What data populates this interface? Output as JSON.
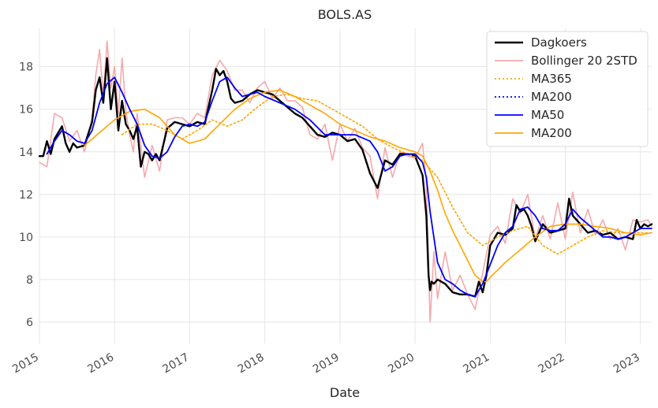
{
  "chart_data": {
    "type": "line",
    "title": "BOLS.AS",
    "xlabel": "Date",
    "ylabel": "",
    "xlim": [
      2015.0,
      2023.15
    ],
    "ylim": [
      5.0,
      19.8
    ],
    "x_ticks": [
      "2015",
      "2016",
      "2017",
      "2018",
      "2019",
      "2020",
      "2021",
      "2022",
      "2023"
    ],
    "y_ticks": [
      6,
      8,
      10,
      12,
      14,
      16,
      18
    ],
    "grid": true,
    "legend_position": "top-right",
    "legend": [
      {
        "name": "Dagkoers",
        "color": "#000000",
        "style": "solid"
      },
      {
        "name": "Bollinger 20 2STD",
        "color": "#f4a9ad",
        "style": "solid"
      },
      {
        "name": "MA365",
        "color": "#ffa500",
        "style": "dotted"
      },
      {
        "name": "MA200",
        "color": "#0000ff",
        "style": "dotted"
      },
      {
        "name": "MA50",
        "color": "#0000ff",
        "style": "solid"
      },
      {
        "name": "MA200",
        "color": "#ffa500",
        "style": "solid"
      }
    ],
    "series": [
      {
        "name": "Dagkoers",
        "x": [
          2015.0,
          2015.05,
          2015.1,
          2015.15,
          2015.2,
          2015.3,
          2015.35,
          2015.4,
          2015.45,
          2015.5,
          2015.6,
          2015.7,
          2015.75,
          2015.8,
          2015.85,
          2015.9,
          2015.95,
          2016.0,
          2016.05,
          2016.1,
          2016.15,
          2016.2,
          2016.25,
          2016.3,
          2016.35,
          2016.4,
          2016.45,
          2016.5,
          2016.55,
          2016.6,
          2016.7,
          2016.8,
          2016.9,
          2017.0,
          2017.1,
          2017.2,
          2017.3,
          2017.35,
          2017.4,
          2017.45,
          2017.5,
          2017.55,
          2017.6,
          2017.7,
          2017.8,
          2017.9,
          2018.0,
          2018.1,
          2018.2,
          2018.3,
          2018.4,
          2018.5,
          2018.6,
          2018.7,
          2018.8,
          2018.9,
          2019.0,
          2019.1,
          2019.2,
          2019.3,
          2019.4,
          2019.5,
          2019.6,
          2019.7,
          2019.8,
          2019.9,
          2020.0,
          2020.1,
          2020.15,
          2020.18,
          2020.2,
          2020.22,
          2020.25,
          2020.3,
          2020.4,
          2020.5,
          2020.6,
          2020.7,
          2020.8,
          2020.85,
          2020.9,
          2020.95,
          2021.0,
          2021.1,
          2021.2,
          2021.3,
          2021.35,
          2021.4,
          2021.45,
          2021.5,
          2021.55,
          2021.6,
          2021.7,
          2021.8,
          2021.9,
          2022.0,
          2022.05,
          2022.1,
          2022.15,
          2022.2,
          2022.3,
          2022.4,
          2022.5,
          2022.6,
          2022.7,
          2022.8,
          2022.9,
          2022.95,
          2023.0,
          2023.05,
          2023.1,
          2023.15
        ],
        "values": [
          13.8,
          13.8,
          14.5,
          13.9,
          14.6,
          15.2,
          14.4,
          14.0,
          14.4,
          14.2,
          14.3,
          15.4,
          16.9,
          17.5,
          16.3,
          18.4,
          16.0,
          17.3,
          15.0,
          16.4,
          15.3,
          15.0,
          14.6,
          15.2,
          13.3,
          14.0,
          13.9,
          13.6,
          13.9,
          13.6,
          15.1,
          15.4,
          15.3,
          15.2,
          15.4,
          15.3,
          16.9,
          17.9,
          17.6,
          17.8,
          17.3,
          16.5,
          16.3,
          16.4,
          16.7,
          16.9,
          16.8,
          16.7,
          16.4,
          16.1,
          15.8,
          15.6,
          15.2,
          14.8,
          14.7,
          14.9,
          14.8,
          14.5,
          14.6,
          14.1,
          13.0,
          12.3,
          13.6,
          13.4,
          13.9,
          13.9,
          13.8,
          12.9,
          11.0,
          8.2,
          7.5,
          7.9,
          7.8,
          8.0,
          7.8,
          7.4,
          7.3,
          7.3,
          7.2,
          7.9,
          7.4,
          8.2,
          9.6,
          10.2,
          10.1,
          10.4,
          11.5,
          11.2,
          11.3,
          11.0,
          10.5,
          9.8,
          10.6,
          10.2,
          10.3,
          10.4,
          11.8,
          11.0,
          10.8,
          10.6,
          10.2,
          10.3,
          10.1,
          10.2,
          9.9,
          10.0,
          9.9,
          10.8,
          10.4,
          10.6,
          10.5,
          10.6
        ]
      },
      {
        "name": "Bollinger 20 2STD",
        "x": [
          2015.0,
          2015.1,
          2015.2,
          2015.3,
          2015.4,
          2015.5,
          2015.6,
          2015.7,
          2015.75,
          2015.8,
          2015.85,
          2015.9,
          2015.95,
          2016.0,
          2016.05,
          2016.1,
          2016.15,
          2016.2,
          2016.25,
          2016.3,
          2016.4,
          2016.5,
          2016.6,
          2016.7,
          2016.8,
          2016.9,
          2017.0,
          2017.1,
          2017.2,
          2017.3,
          2017.4,
          2017.5,
          2017.6,
          2017.7,
          2017.8,
          2017.9,
          2018.0,
          2018.1,
          2018.2,
          2018.3,
          2018.4,
          2018.5,
          2018.6,
          2018.7,
          2018.8,
          2018.9,
          2019.0,
          2019.1,
          2019.2,
          2019.3,
          2019.4,
          2019.5,
          2019.6,
          2019.7,
          2019.8,
          2019.9,
          2020.0,
          2020.1,
          2020.15,
          2020.2,
          2020.25,
          2020.3,
          2020.4,
          2020.5,
          2020.6,
          2020.7,
          2020.8,
          2020.9,
          2021.0,
          2021.1,
          2021.2,
          2021.3,
          2021.4,
          2021.5,
          2021.6,
          2021.7,
          2021.8,
          2021.9,
          2022.0,
          2022.1,
          2022.2,
          2022.3,
          2022.4,
          2022.5,
          2022.6,
          2022.7,
          2022.8,
          2022.9,
          2023.0,
          2023.1,
          2023.15
        ],
        "values": [
          13.5,
          13.3,
          15.8,
          15.6,
          14.5,
          15.0,
          14.0,
          15.6,
          17.6,
          18.8,
          16.6,
          19.2,
          17.0,
          18.0,
          15.8,
          18.4,
          15.9,
          14.8,
          14.0,
          15.8,
          12.8,
          14.3,
          13.1,
          15.5,
          15.6,
          15.6,
          15.3,
          15.8,
          15.6,
          17.6,
          18.3,
          17.8,
          16.9,
          16.9,
          16.3,
          17.0,
          17.3,
          16.5,
          17.0,
          16.4,
          16.4,
          16.1,
          14.8,
          14.6,
          15.3,
          13.6,
          15.3,
          14.5,
          15.1,
          14.2,
          13.8,
          11.8,
          14.2,
          12.8,
          14.0,
          13.8,
          13.7,
          14.4,
          12.5,
          6.0,
          9.3,
          7.1,
          9.3,
          7.5,
          8.2,
          7.3,
          6.6,
          8.3,
          10.1,
          10.5,
          9.7,
          11.8,
          11.1,
          12.0,
          9.9,
          11.0,
          9.9,
          11.6,
          9.9,
          12.1,
          10.2,
          11.3,
          10.1,
          10.8,
          9.9,
          10.4,
          9.4,
          10.8,
          10.7,
          10.8,
          10.5
        ]
      },
      {
        "name": "MA365",
        "x": [
          2016.1,
          2016.3,
          2016.5,
          2016.7,
          2016.9,
          2017.1,
          2017.3,
          2017.5,
          2017.7,
          2017.9,
          2018.1,
          2018.3,
          2018.5,
          2018.7,
          2018.9,
          2019.1,
          2019.3,
          2019.5,
          2019.7,
          2019.9,
          2020.1,
          2020.3,
          2020.5,
          2020.7,
          2020.9,
          2021.1,
          2021.3,
          2021.5,
          2021.7,
          2021.9,
          2022.1,
          2022.3,
          2022.5,
          2022.7,
          2022.9,
          2023.15
        ],
        "values": [
          14.8,
          15.3,
          15.3,
          15.0,
          14.6,
          15.0,
          15.5,
          15.2,
          15.5,
          16.1,
          16.6,
          16.7,
          16.5,
          16.4,
          16.0,
          15.6,
          15.2,
          14.6,
          14.2,
          13.9,
          13.6,
          12.8,
          11.4,
          10.2,
          9.6,
          10.0,
          10.3,
          10.5,
          9.6,
          9.2,
          9.6,
          10.0,
          10.3,
          10.2,
          10.2,
          10.2
        ]
      },
      {
        "name": "MA200",
        "x": [],
        "values": []
      },
      {
        "name": "MA50",
        "x": [
          2015.1,
          2015.2,
          2015.3,
          2015.4,
          2015.5,
          2015.6,
          2015.7,
          2015.8,
          2015.9,
          2016.0,
          2016.1,
          2016.2,
          2016.3,
          2016.4,
          2016.5,
          2016.6,
          2016.7,
          2016.8,
          2016.9,
          2017.0,
          2017.1,
          2017.2,
          2017.3,
          2017.4,
          2017.5,
          2017.6,
          2017.7,
          2017.8,
          2017.9,
          2018.0,
          2018.2,
          2018.4,
          2018.6,
          2018.8,
          2019.0,
          2019.2,
          2019.4,
          2019.5,
          2019.6,
          2019.7,
          2019.8,
          2019.9,
          2020.0,
          2020.1,
          2020.15,
          2020.2,
          2020.3,
          2020.4,
          2020.5,
          2020.6,
          2020.7,
          2020.8,
          2020.9,
          2021.0,
          2021.1,
          2021.2,
          2021.3,
          2021.4,
          2021.5,
          2021.6,
          2021.7,
          2021.8,
          2021.9,
          2022.0,
          2022.1,
          2022.2,
          2022.3,
          2022.4,
          2022.5,
          2022.6,
          2022.7,
          2022.8,
          2022.9,
          2023.0,
          2023.15
        ],
        "values": [
          13.9,
          14.5,
          15.0,
          14.8,
          14.5,
          14.4,
          15.0,
          16.3,
          17.2,
          17.5,
          16.8,
          16.0,
          15.3,
          14.3,
          13.8,
          13.7,
          14.0,
          14.7,
          15.2,
          15.3,
          15.2,
          15.4,
          16.4,
          17.3,
          17.5,
          17.0,
          16.6,
          16.7,
          16.8,
          16.6,
          16.3,
          16.0,
          15.5,
          14.8,
          14.8,
          14.8,
          14.5,
          14.0,
          13.1,
          13.3,
          13.8,
          13.9,
          13.9,
          13.5,
          12.8,
          11.2,
          8.8,
          8.0,
          7.8,
          7.5,
          7.3,
          7.2,
          7.8,
          8.7,
          9.6,
          10.2,
          10.5,
          11.3,
          11.4,
          11.0,
          10.4,
          10.3,
          10.3,
          10.6,
          11.3,
          10.9,
          10.6,
          10.3,
          10.0,
          10.0,
          9.9,
          10.0,
          10.2,
          10.4,
          10.4
        ]
      },
      {
        "name": "MA200",
        "x": [
          2015.6,
          2015.8,
          2016.0,
          2016.2,
          2016.4,
          2016.6,
          2016.8,
          2017.0,
          2017.2,
          2017.4,
          2017.6,
          2017.8,
          2018.0,
          2018.2,
          2018.4,
          2018.6,
          2018.8,
          2019.0,
          2019.2,
          2019.4,
          2019.6,
          2019.8,
          2020.0,
          2020.1,
          2020.2,
          2020.3,
          2020.4,
          2020.5,
          2020.6,
          2020.7,
          2020.8,
          2020.9,
          2020.95,
          2021.0,
          2021.2,
          2021.4,
          2021.6,
          2021.8,
          2022.0,
          2022.2,
          2022.4,
          2022.6,
          2022.8,
          2023.0,
          2023.15
        ],
        "values": [
          14.3,
          14.9,
          15.5,
          15.9,
          16.0,
          15.6,
          14.8,
          14.4,
          14.6,
          15.3,
          16.0,
          16.5,
          16.8,
          16.9,
          16.6,
          16.2,
          15.8,
          15.3,
          15.0,
          14.7,
          14.5,
          14.2,
          14.0,
          13.8,
          13.1,
          12.2,
          11.1,
          10.3,
          9.6,
          8.9,
          8.2,
          7.9,
          7.9,
          8.1,
          8.8,
          9.4,
          10.0,
          10.5,
          10.6,
          10.6,
          10.5,
          10.4,
          10.2,
          10.1,
          10.2
        ]
      }
    ]
  }
}
